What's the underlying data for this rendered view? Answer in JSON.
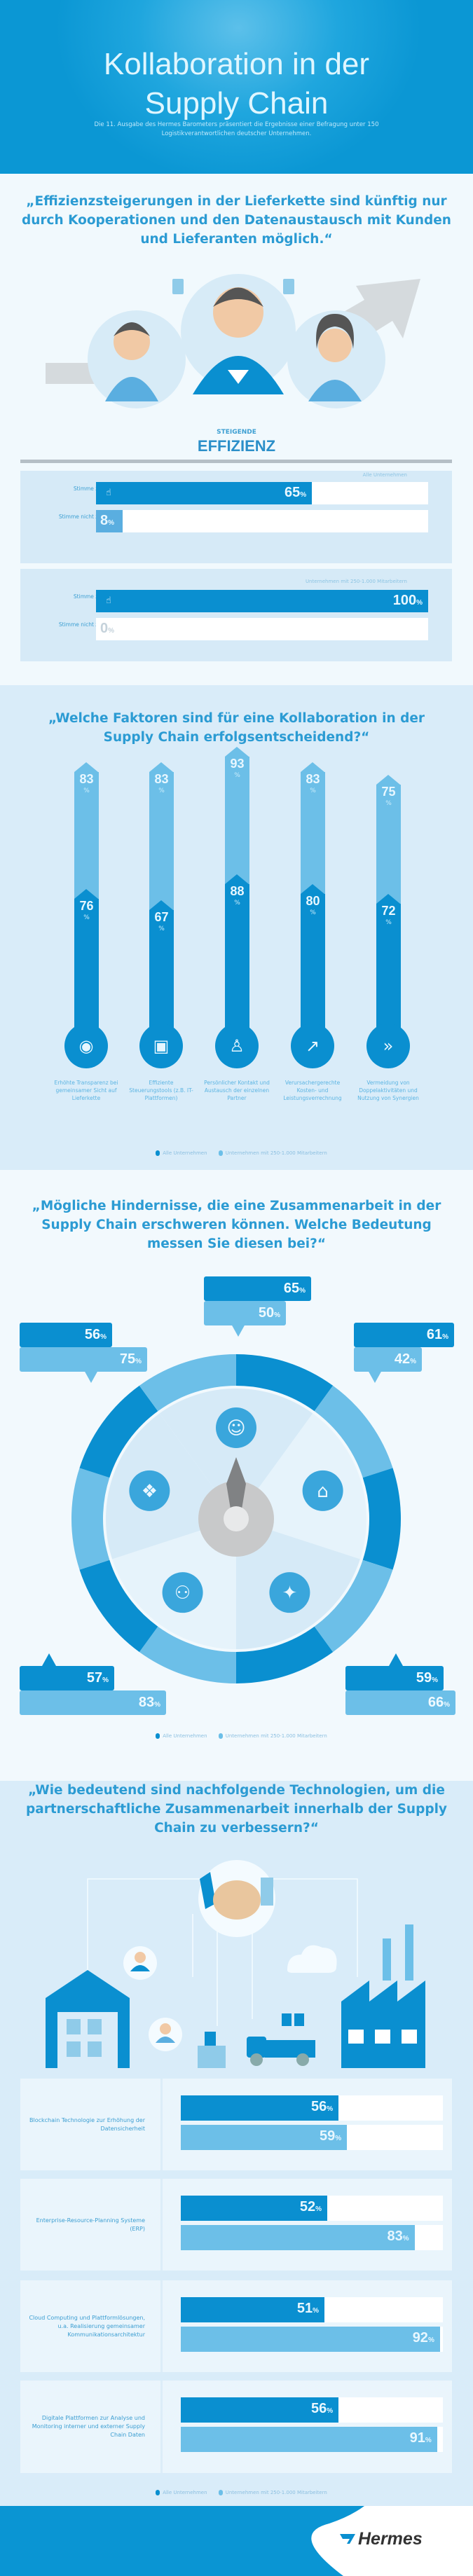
{
  "header": {
    "title_line1": "Kollaboration in der",
    "title_line2": "Supply Chain",
    "subtitle": "Die 11. Ausgabe des Hermes Barometers präsentiert die Ergebnisse einer Befragung unter 150 Logistikverantwortlichen deutscher Unternehmen."
  },
  "colors": {
    "dark_blue": "#0a8fd0",
    "light_blue": "#6cbfe8",
    "pale_blue": "#d9ecf9",
    "quote_blue": "#2b9bd3"
  },
  "legend": {
    "all": "Alle Unternehmen",
    "mid": "Unternehmen mit 250-1.000 Mitarbeitern"
  },
  "section1": {
    "quote": "„Effizienzsteigerungen in der Lieferkette sind künftig nur durch Kooperationen und den Datenaustausch mit Kunden und Lieferanten möglich.“",
    "badge_small": "STEIGENDE",
    "badge_big": "EFFIZIENZ",
    "icons": [
      "person-icon",
      "thumbs-up-icon",
      "trend-arrow-icon"
    ]
  },
  "section2": {
    "quote": "„Welche Faktoren sind für eine Kollaboration in der Supply Chain erfolgsentscheidend?“",
    "icons": [
      "eye-icon",
      "monitor-icon",
      "person-network-icon",
      "chart-coins-icon",
      "double-arrow-icon"
    ]
  },
  "section3": {
    "quote": "„Mögliche Hindernisse, die eine Zusammenarbeit in der Supply Chain erschweren können. Welche Bedeutung messen Sie diesen bei?“",
    "icons": [
      "person-icon",
      "house-icon",
      "network-icon",
      "people-icon",
      "puzzle-icon",
      "compass-needle-icon"
    ]
  },
  "section4": {
    "quote": "„Wie bedeutend sind nachfolgende Technologien, um die partnerschaftliche Zusammenarbeit innerhalb der Supply Chain zu verbessern?“",
    "icons": [
      "handshake-icon",
      "warehouse-icon",
      "factory-icon",
      "truck-icon",
      "cloud-icon",
      "person-icon"
    ]
  },
  "footer": {
    "logo": "Hermes"
  },
  "chart_data": [
    {
      "type": "bar",
      "orientation": "horizontal",
      "groups": [
        {
          "note": "Alle Unternehmen",
          "categories": [
            "Stimme zu",
            "Stimme nicht zu"
          ],
          "values": [
            65,
            8
          ]
        },
        {
          "note": "Unternehmen mit 250-1.000 Mitarbeitern",
          "categories": [
            "Stimme zu",
            "Stimme nicht zu"
          ],
          "values": [
            100,
            0
          ]
        }
      ],
      "unit": "%"
    },
    {
      "type": "bar",
      "orientation": "vertical",
      "categories": [
        "Erhöhte Transparenz bei gemeinsamer Sicht auf Lieferkette",
        "Effiziente Steuerungstools (z.B. IT-Plattformen)",
        "Persönlicher Kontakt und Austausch der einzelnen Partner",
        "Verursachergerechte Kosten- und Leistungsverrechnung",
        "Vermeidung von Doppelaktivitäten und Nutzung von Synergien"
      ],
      "series": [
        {
          "name": "Alle Unternehmen",
          "color": "#0a8fd0",
          "values": [
            76,
            67,
            88,
            80,
            72
          ]
        },
        {
          "name": "Unternehmen mit 250-1.000 Mitarbeitern",
          "color": "#6cbfe8",
          "values": [
            83,
            83,
            93,
            83,
            75
          ]
        }
      ],
      "unit": "%",
      "legend": "bottom"
    },
    {
      "type": "table",
      "positions": [
        "top",
        "top-left",
        "top-right",
        "bottom-left",
        "bottom-right"
      ],
      "series": [
        {
          "name": "Alle Unternehmen",
          "values": [
            65,
            56,
            61,
            57,
            59
          ]
        },
        {
          "name": "Unternehmen mit 250-1.000 Mitarbeitern",
          "values": [
            50,
            75,
            42,
            83,
            66
          ]
        }
      ],
      "unit": "%",
      "legend": "bottom"
    },
    {
      "type": "bar",
      "orientation": "horizontal",
      "categories": [
        "Blockchain Technologie zur Erhöhung der Datensicherheit",
        "Enterprise-Resource-Planning Systeme (ERP)",
        "Cloud Computing und Plattformlösungen, u.a. Realisierung gemeinsamer Kommunikationsarchitektur",
        "Digitale Plattformen zur Analyse und Monitoring interner und externer Supply Chain Daten"
      ],
      "series": [
        {
          "name": "Alle Unternehmen",
          "values": [
            56,
            52,
            51,
            56
          ]
        },
        {
          "name": "Unternehmen mit 250-1.000 Mitarbeitern",
          "values": [
            59,
            83,
            92,
            91
          ]
        }
      ],
      "unit": "%",
      "legend": "bottom"
    }
  ]
}
